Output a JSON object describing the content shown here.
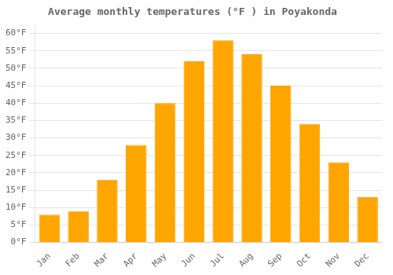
{
  "chart_data": {
    "type": "bar",
    "title": "Average monthly temperatures (°F ) in Poyakonda",
    "categories": [
      "Jan",
      "Feb",
      "Mar",
      "Apr",
      "May",
      "Jun",
      "Jul",
      "Aug",
      "Sep",
      "Oct",
      "Nov",
      "Dec"
    ],
    "values": [
      8,
      9,
      18,
      28,
      40,
      52,
      58,
      54,
      45,
      34,
      23,
      13
    ],
    "color": "#FFA500",
    "ylim": [
      0,
      62
    ],
    "yticks": [
      {
        "value": 0,
        "label": "0°F"
      },
      {
        "value": 5,
        "label": "5°F"
      },
      {
        "value": 10,
        "label": "10°F"
      },
      {
        "value": 15,
        "label": "15°F"
      },
      {
        "value": 20,
        "label": "20°F"
      },
      {
        "value": 25,
        "label": "25°F"
      },
      {
        "value": 30,
        "label": "30°F"
      },
      {
        "value": 35,
        "label": "35°F"
      },
      {
        "value": 40,
        "label": "40°F"
      },
      {
        "value": 45,
        "label": "45°F"
      },
      {
        "value": 50,
        "label": "50°F"
      },
      {
        "value": 55,
        "label": "55°F"
      },
      {
        "value": 60,
        "label": "60°F"
      }
    ],
    "grid": true
  }
}
